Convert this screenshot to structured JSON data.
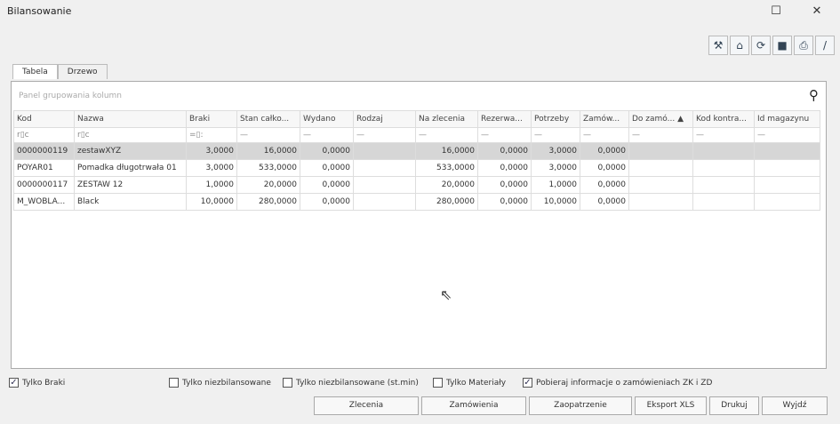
{
  "window": {
    "title": "Bilansowanie"
  },
  "toolbar": [
    {
      "icon": "tools-icon",
      "glyph": "⚒"
    },
    {
      "icon": "home-icon",
      "glyph": "⌂"
    },
    {
      "icon": "refresh-icon",
      "glyph": "⟳"
    },
    {
      "icon": "save-icon",
      "glyph": "■"
    },
    {
      "icon": "print-icon",
      "glyph": "⎙"
    },
    {
      "icon": "edit-icon",
      "glyph": "/"
    }
  ],
  "tabs": [
    "Tabela",
    "Drzewo"
  ],
  "group_panel": {
    "placeholder": "Panel grupowania kolumn"
  },
  "columns": [
    "Kod",
    "Nazwa",
    "Braki",
    "Stan całko...",
    "Wydano",
    "Rodzaj",
    "Na zlecenia",
    "Rezerwa...",
    "Potrzeby",
    "Zamów...",
    "Do zamó... ▲",
    "Kod kontra...",
    "Id magazynu"
  ],
  "filters": [
    "r▯c",
    "r▯c",
    "=▯:",
    "—",
    "—",
    "—",
    "—",
    "—",
    "—",
    "—",
    "—",
    "—",
    "—"
  ],
  "rows": [
    [
      "0000000119",
      "zestawXYZ",
      "3,0000",
      "16,0000",
      "0,0000",
      "",
      "16,0000",
      "0,0000",
      "3,0000",
      "0,0000",
      "",
      "",
      ""
    ],
    [
      "POYAR01",
      "Pomadka długotrwała 01",
      "3,0000",
      "533,0000",
      "0,0000",
      "",
      "533,0000",
      "0,0000",
      "3,0000",
      "0,0000",
      "",
      "",
      ""
    ],
    [
      "0000000117",
      "ZESTAW 12",
      "1,0000",
      "20,0000",
      "0,0000",
      "",
      "20,0000",
      "0,0000",
      "1,0000",
      "0,0000",
      "",
      "",
      ""
    ],
    [
      "M_WOBLA...",
      "Black",
      "10,0000",
      "280,0000",
      "0,0000",
      "",
      "280,0000",
      "0,0000",
      "10,0000",
      "0,0000",
      "",
      "",
      ""
    ]
  ],
  "checkboxes": [
    {
      "label": "Tylko Braki",
      "checked": true
    },
    {
      "label": "Tylko niezbilansowane",
      "checked": false
    },
    {
      "label": "Tylko niezbilansowane (st.min)",
      "checked": false
    },
    {
      "label": "Tylko Materiały",
      "checked": false
    },
    {
      "label": "Pobieraj informacje o zamówieniach ZK i ZD",
      "checked": true
    }
  ],
  "buttons": [
    "Zlecenia",
    "Zamówienia",
    "Zaopatrzenie",
    "Eksport XLS",
    "Drukuj",
    "Wyjdź"
  ]
}
